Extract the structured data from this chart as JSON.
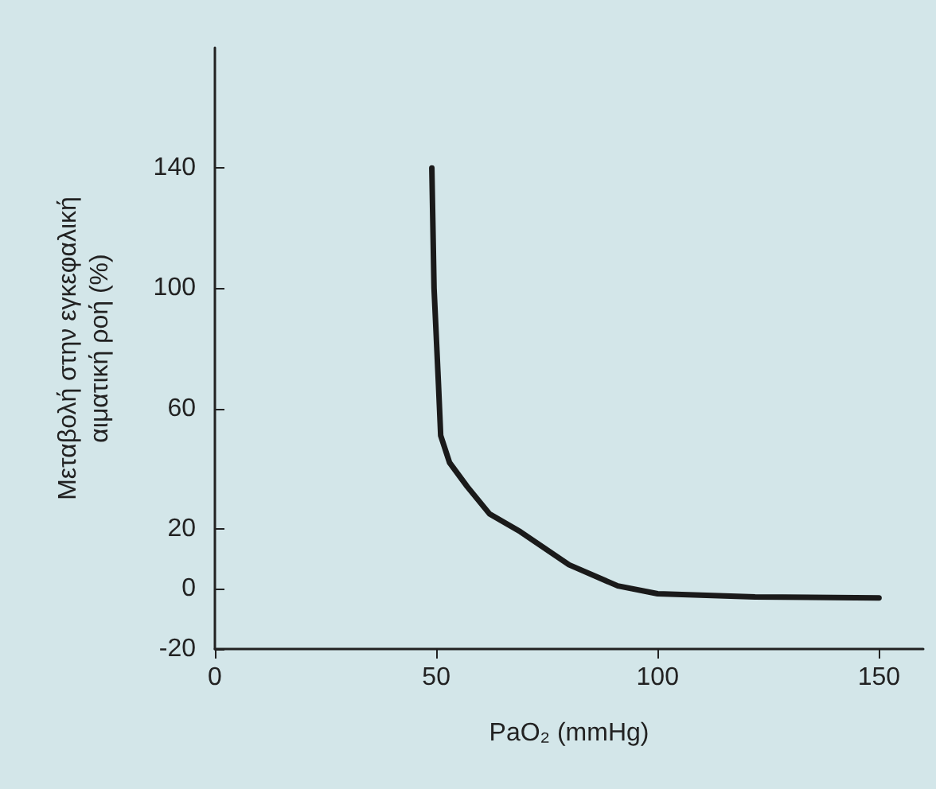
{
  "chart_data": {
    "type": "line",
    "xlabel": "PaO₂ (mmHg)",
    "ylabel": "Μεταβολή στην εγκεφαλική\nαιματική ροή (%)",
    "x": [
      49,
      49.5,
      50.5,
      51,
      53,
      57,
      62,
      69,
      80,
      91,
      100,
      122,
      150
    ],
    "series": [
      {
        "color": "#1a1a1a",
        "values": [
          140,
          100,
          68,
          51,
          42,
          34,
          25,
          19,
          8,
          1,
          -1.6,
          -2.7,
          -3
        ]
      }
    ],
    "xlim": [
      0,
      160
    ],
    "xticks": [
      0,
      50,
      100,
      150
    ],
    "ylim": [
      -20,
      180
    ],
    "yticks": [
      -20,
      0,
      20,
      60,
      100,
      140
    ],
    "marker": "none",
    "line_style": "solid"
  }
}
